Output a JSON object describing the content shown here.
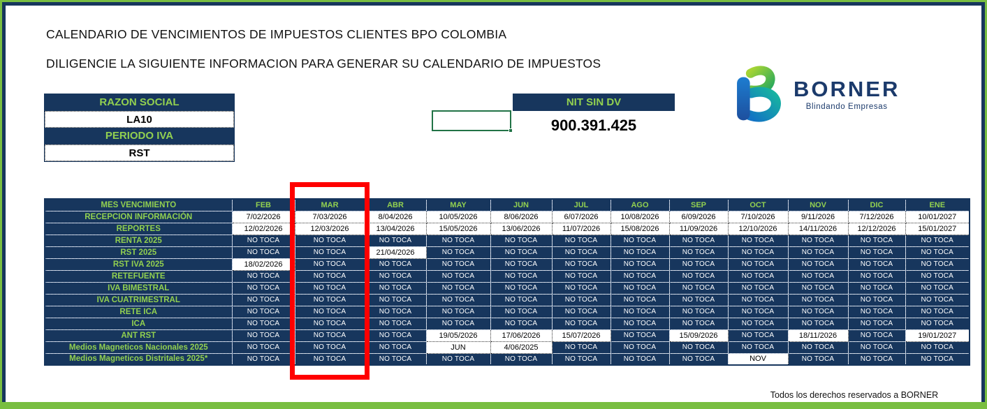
{
  "page": {
    "title1": "CALENDARIO DE VENCIMIENTOS DE IMPUESTOS CLIENTES BPO COLOMBIA",
    "title2": "DILIGENCIE LA SIGUIENTE INFORMACION PARA GENERAR SU CALENDARIO DE IMPUESTOS",
    "footer": "Todos los derechos reservados a BORNER"
  },
  "form": {
    "razon_social_label": "RAZON SOCIAL",
    "razon_social_value": "LA10",
    "periodo_iva_label": "PERIODO IVA",
    "periodo_iva_value": "RST",
    "nit_label": "NIT SIN DV",
    "nit_value": "900.391.425"
  },
  "logo": {
    "name": "BORNER",
    "tagline": "Blindando Empresas"
  },
  "colors": {
    "navy": "#17365d",
    "accent_green_text": "#92d050",
    "frame_green": "#79be41",
    "highlight_red": "#ff0000",
    "selection_green": "#217346",
    "logo_navy": "#1b3a6b"
  },
  "table": {
    "header_label": "MES VENCIMIENTO",
    "months": [
      "FEB",
      "MAR",
      "ABR",
      "MAY",
      "JUN",
      "JUL",
      "AGO",
      "SEP",
      "OCT",
      "NOV",
      "DIC",
      "ENE"
    ],
    "highlighted_month": "MAR",
    "empty_value": "NO TOCA",
    "rows": [
      {
        "label": "RECEPCION INFORMACIÓN",
        "cells": [
          "7/02/2026",
          "7/03/2026",
          "8/04/2026",
          "10/05/2026",
          "8/06/2026",
          "6/07/2026",
          "10/08/2026",
          "6/09/2026",
          "7/10/2026",
          "9/11/2026",
          "7/12/2026",
          "10/01/2027"
        ]
      },
      {
        "label": "REPORTES",
        "cells": [
          "12/02/2026",
          "12/03/2026",
          "13/04/2026",
          "15/05/2026",
          "13/06/2026",
          "11/07/2026",
          "15/08/2026",
          "11/09/2026",
          "12/10/2026",
          "14/11/2026",
          "12/12/2026",
          "15/01/2027"
        ]
      },
      {
        "label": "RENTA 2025",
        "cells": [
          "NO TOCA",
          "NO TOCA",
          "NO TOCA",
          "NO TOCA",
          "NO TOCA",
          "NO TOCA",
          "NO TOCA",
          "NO TOCA",
          "NO TOCA",
          "NO TOCA",
          "NO TOCA",
          "NO TOCA"
        ]
      },
      {
        "label": "RST 2025",
        "cells": [
          "NO TOCA",
          "NO TOCA",
          "21/04/2026",
          "NO TOCA",
          "NO TOCA",
          "NO TOCA",
          "NO TOCA",
          "NO TOCA",
          "NO TOCA",
          "NO TOCA",
          "NO TOCA",
          "NO TOCA"
        ]
      },
      {
        "label": "RST IVA 2025",
        "cells": [
          "18/02/2026",
          "NO TOCA",
          "NO TOCA",
          "NO TOCA",
          "NO TOCA",
          "NO TOCA",
          "NO TOCA",
          "NO TOCA",
          "NO TOCA",
          "NO TOCA",
          "NO TOCA",
          "NO TOCA"
        ]
      },
      {
        "label": "RETEFUENTE",
        "cells": [
          "NO TOCA",
          "NO TOCA",
          "NO TOCA",
          "NO TOCA",
          "NO TOCA",
          "NO TOCA",
          "NO TOCA",
          "NO TOCA",
          "NO TOCA",
          "NO TOCA",
          "NO TOCA",
          "NO TOCA"
        ]
      },
      {
        "label": "IVA BIMESTRAL",
        "cells": [
          "NO TOCA",
          "NO TOCA",
          "NO TOCA",
          "NO TOCA",
          "NO TOCA",
          "NO TOCA",
          "NO TOCA",
          "NO TOCA",
          "NO TOCA",
          "NO TOCA",
          "NO TOCA",
          "NO TOCA"
        ]
      },
      {
        "label": "IVA CUATRIMESTRAL",
        "cells": [
          "NO TOCA",
          "NO TOCA",
          "NO TOCA",
          "NO TOCA",
          "NO TOCA",
          "NO TOCA",
          "NO TOCA",
          "NO TOCA",
          "NO TOCA",
          "NO TOCA",
          "NO TOCA",
          "NO TOCA"
        ]
      },
      {
        "label": "RETE ICA",
        "cells": [
          "NO TOCA",
          "NO TOCA",
          "NO TOCA",
          "NO TOCA",
          "NO TOCA",
          "NO TOCA",
          "NO TOCA",
          "NO TOCA",
          "NO TOCA",
          "NO TOCA",
          "NO TOCA",
          "NO TOCA"
        ]
      },
      {
        "label": "ICA",
        "cells": [
          "NO TOCA",
          "NO TOCA",
          "NO TOCA",
          "NO TOCA",
          "NO TOCA",
          "NO TOCA",
          "NO TOCA",
          "NO TOCA",
          "NO TOCA",
          "NO TOCA",
          "NO TOCA",
          "NO TOCA"
        ]
      },
      {
        "label": "ANT RST",
        "cells": [
          "NO TOCA",
          "NO TOCA",
          "NO TOCA",
          "19/05/2026",
          "17/06/2026",
          "15/07/2026",
          "NO TOCA",
          "15/09/2026",
          "NO TOCA",
          "18/11/2026",
          "NO TOCA",
          "19/01/2027"
        ]
      },
      {
        "label": "Medios Magneticos Nacionales 2025",
        "cells": [
          "NO TOCA",
          "NO TOCA",
          "NO TOCA",
          "JUN",
          "4/06/2025",
          "NO TOCA",
          "NO TOCA",
          "NO TOCA",
          "NO TOCA",
          "NO TOCA",
          "NO TOCA",
          "NO TOCA"
        ]
      },
      {
        "label": "Medios Magneticos Distritales 2025*",
        "cells": [
          "NO TOCA",
          "NO TOCA",
          "NO TOCA",
          "NO TOCA",
          "NO TOCA",
          "NO TOCA",
          "NO TOCA",
          "NO TOCA",
          "NOV",
          "NO TOCA",
          "NO TOCA",
          "NO TOCA"
        ]
      }
    ]
  }
}
